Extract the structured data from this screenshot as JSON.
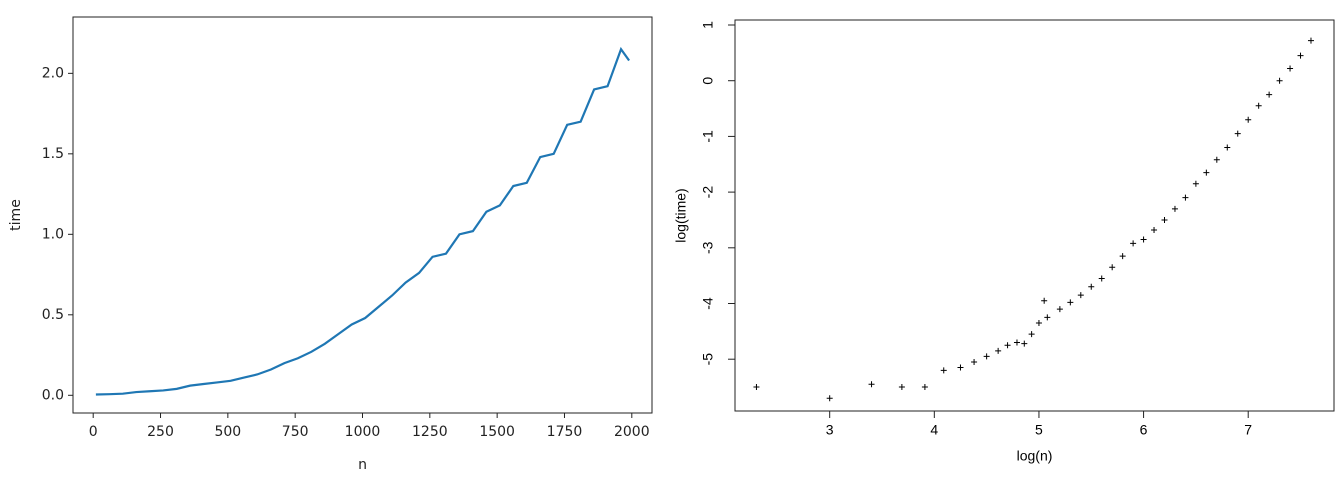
{
  "chart_data": [
    {
      "type": "line",
      "xlabel": "n",
      "ylabel": "time",
      "color": "#1f77b4",
      "x": [
        10,
        60,
        110,
        160,
        210,
        260,
        310,
        360,
        410,
        460,
        510,
        560,
        610,
        660,
        710,
        760,
        810,
        860,
        910,
        960,
        1010,
        1060,
        1110,
        1160,
        1210,
        1260,
        1310,
        1360,
        1410,
        1460,
        1510,
        1560,
        1610,
        1660,
        1710,
        1760,
        1810,
        1860,
        1910,
        1960,
        1990
      ],
      "values": [
        0.005,
        0.007,
        0.01,
        0.02,
        0.025,
        0.03,
        0.04,
        0.06,
        0.07,
        0.08,
        0.09,
        0.11,
        0.13,
        0.16,
        0.2,
        0.23,
        0.27,
        0.32,
        0.38,
        0.44,
        0.48,
        0.55,
        0.62,
        0.7,
        0.76,
        0.86,
        0.88,
        1.0,
        1.02,
        1.14,
        1.18,
        1.3,
        1.32,
        1.48,
        1.5,
        1.68,
        1.7,
        1.9,
        1.92,
        2.15,
        2.08
      ],
      "xlim": [
        -75,
        2075
      ],
      "ylim": [
        -0.11,
        2.35
      ],
      "xticks": [
        0,
        250,
        500,
        750,
        1000,
        1250,
        1500,
        1750,
        2000
      ],
      "yticks": [
        {
          "value": 0,
          "label": "0.0"
        },
        {
          "value": 0.5,
          "label": "0.5"
        },
        {
          "value": 1,
          "label": "1.0"
        },
        {
          "value": 1.5,
          "label": "1.5"
        },
        {
          "value": 2,
          "label": "2.0"
        }
      ]
    },
    {
      "type": "scatter",
      "xlabel": "log(n)",
      "ylabel": "log(time)",
      "color": "#000000",
      "x": [
        2.3,
        3.0,
        3.4,
        3.69,
        3.91,
        4.09,
        4.25,
        4.38,
        4.5,
        4.61,
        4.7,
        4.79,
        4.86,
        4.93,
        5.0,
        5.05,
        5.08,
        5.2,
        5.3,
        5.4,
        5.5,
        5.6,
        5.7,
        5.8,
        5.9,
        6.0,
        6.1,
        6.2,
        6.3,
        6.4,
        6.5,
        6.6,
        6.7,
        6.8,
        6.9,
        7.0,
        7.1,
        7.2,
        7.3,
        7.4,
        7.5,
        7.6
      ],
      "values": [
        -5.5,
        -5.7,
        -5.45,
        -5.5,
        -5.5,
        -5.2,
        -5.15,
        -5.05,
        -4.95,
        -4.85,
        -4.75,
        -4.7,
        -4.72,
        -4.55,
        -4.35,
        -3.95,
        -4.25,
        -4.1,
        -3.98,
        -3.85,
        -3.7,
        -3.55,
        -3.35,
        -3.15,
        -2.92,
        -2.85,
        -2.68,
        -2.5,
        -2.3,
        -2.1,
        -1.85,
        -1.65,
        -1.42,
        -1.2,
        -0.95,
        -0.7,
        -0.45,
        -0.25,
        0.0,
        0.22,
        0.45,
        0.72
      ],
      "xlim": [
        2.095,
        7.82
      ],
      "ylim": [
        -5.93,
        1.09
      ],
      "xticks": [
        3,
        4,
        5,
        6,
        7
      ],
      "yticks": [
        -5,
        -4,
        -3,
        -2,
        -1,
        0,
        1
      ]
    }
  ]
}
